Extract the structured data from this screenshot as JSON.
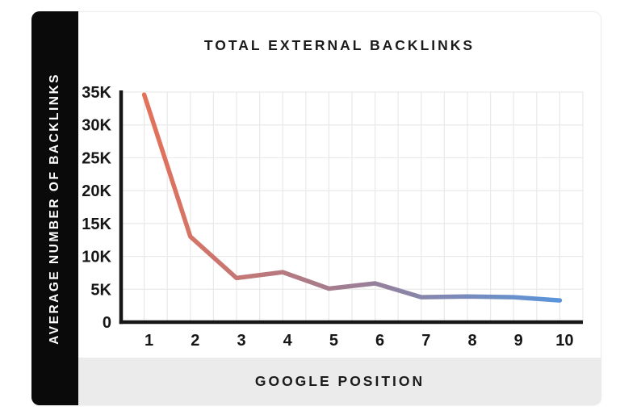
{
  "chart_data": {
    "type": "line",
    "title": "TOTAL EXTERNAL BACKLINKS",
    "xlabel": "GOOGLE POSITION",
    "ylabel": "AVERAGE NUMBER OF BACKLINKS",
    "x": [
      1,
      2,
      3,
      4,
      5,
      6,
      7,
      8,
      9,
      10
    ],
    "x_tick_labels": [
      "1",
      "2",
      "3",
      "4",
      "5",
      "6",
      "7",
      "8",
      "9",
      "10"
    ],
    "series": [
      {
        "name": "Average number of backlinks",
        "values": [
          34600,
          13000,
          6700,
          7600,
          5100,
          5900,
          3800,
          3900,
          3800,
          3300
        ]
      }
    ],
    "y_tick_labels": [
      "0",
      "5K",
      "10K",
      "15K",
      "20K",
      "25K",
      "30K",
      "35K"
    ],
    "y_tick_values": [
      0,
      5000,
      10000,
      15000,
      20000,
      25000,
      30000,
      35000
    ],
    "ylim": [
      0,
      35000
    ],
    "grid": true,
    "legend": "none",
    "colors": {
      "line_gradient_start": "#E4715A",
      "line_gradient_mid": "#9E7E93",
      "line_gradient_end": "#5A95DB",
      "axis": "#161616",
      "gridline": "#e9e9e9",
      "tick_text": "#161616",
      "sidebar_bg": "#0a0a0a",
      "footer_bg": "#ebebeb",
      "title_text": "#1b1b1b"
    }
  }
}
